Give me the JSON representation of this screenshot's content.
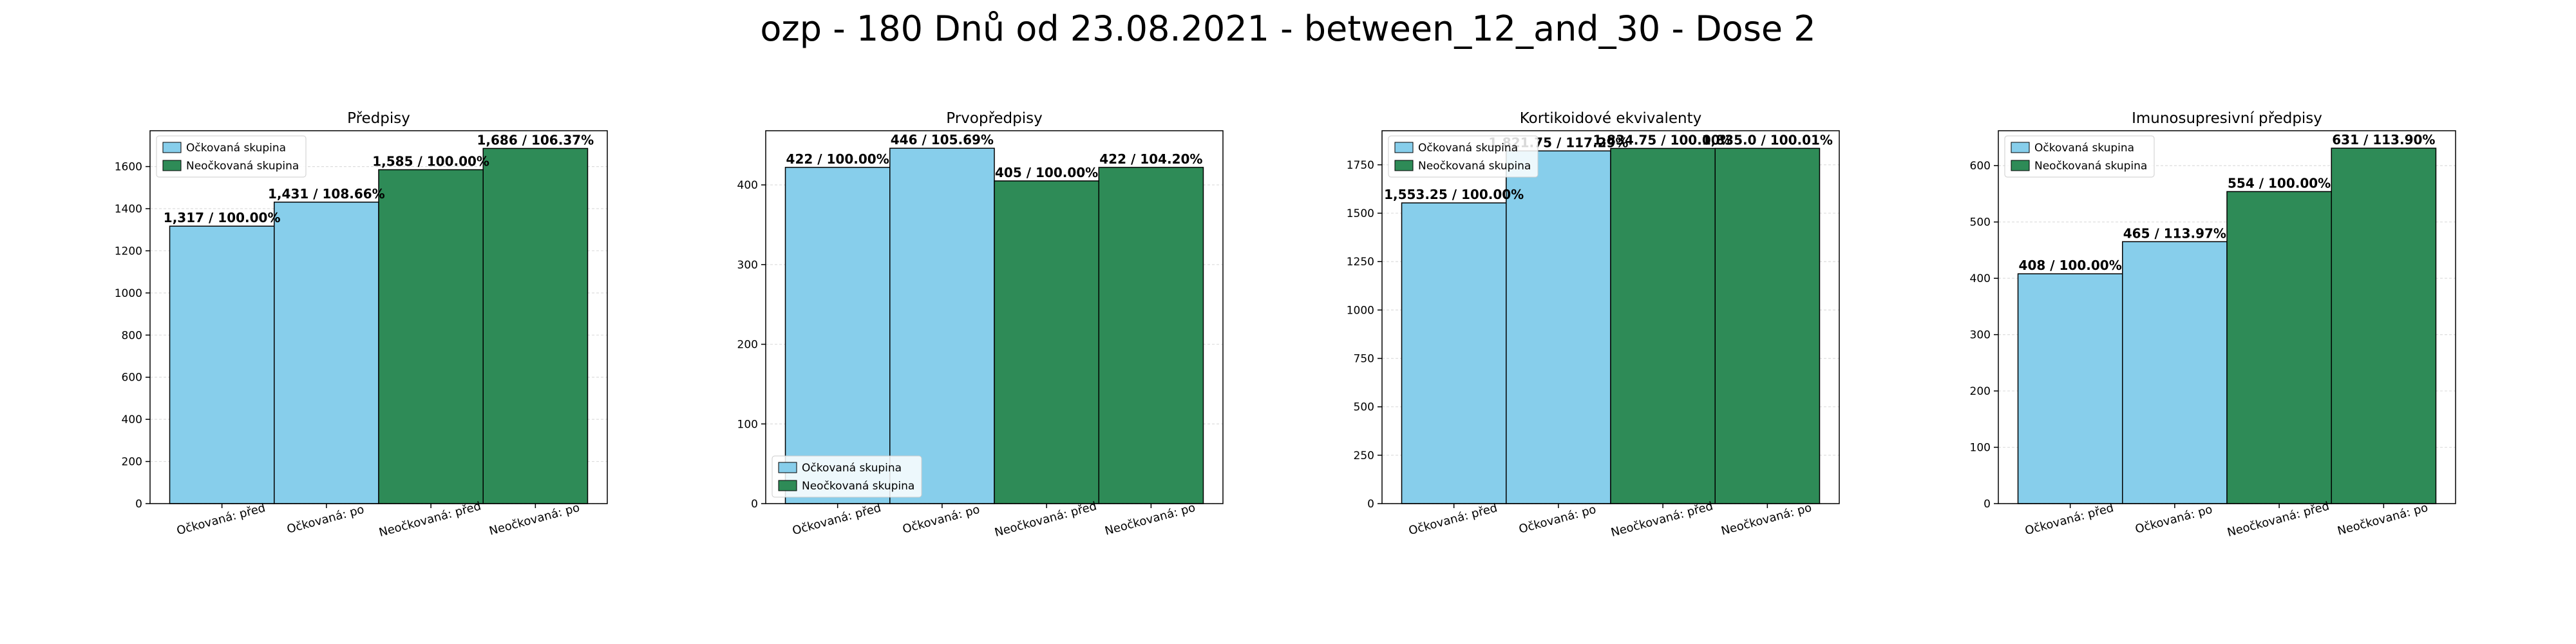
{
  "figure": {
    "suptitle": "ozp - 180 Dnů od 23.08.2021 - between_12_and_30 - Dose 2",
    "colors": {
      "vaccinated": "#87CEEB",
      "unvaccinated": "#2E8B57",
      "edge": "#000000",
      "grid": "#dddddd"
    }
  },
  "chart_data": [
    {
      "type": "bar",
      "title": "Předpisy",
      "categories": [
        "Očkovaná: před",
        "Očkovaná: po",
        "Neočkovaná: před",
        "Neočkovaná: po"
      ],
      "values": [
        1317,
        1431,
        1585,
        1686
      ],
      "bar_colors": [
        "vaccinated",
        "vaccinated",
        "unvaccinated",
        "unvaccinated"
      ],
      "bar_labels": [
        "1,317 / 100.00%",
        "1,431 / 108.66%",
        "1,585 / 100.00%",
        "1,686 / 106.37%"
      ],
      "ylim": [
        0,
        1770
      ],
      "yticks": [
        0,
        200,
        400,
        600,
        800,
        1000,
        1200,
        1400,
        1600
      ],
      "ytick_labels": [
        "0",
        "200",
        "400",
        "600",
        "800",
        "1000",
        "1200",
        "1400",
        "1600"
      ],
      "legend": {
        "position": "upper left",
        "entries": [
          "Očkovaná skupina",
          "Neočkovaná skupina"
        ]
      },
      "grid": true
    },
    {
      "type": "bar",
      "title": "Prvopředpisy",
      "categories": [
        "Očkovaná: před",
        "Očkovaná: po",
        "Neočkovaná: před",
        "Neočkovaná: po"
      ],
      "values": [
        422,
        446,
        405,
        422
      ],
      "bar_colors": [
        "vaccinated",
        "vaccinated",
        "unvaccinated",
        "unvaccinated"
      ],
      "bar_labels": [
        "422 / 100.00%",
        "446 / 105.69%",
        "405 / 100.00%",
        "422 / 104.20%"
      ],
      "ylim": [
        0,
        468
      ],
      "yticks": [
        0,
        100,
        200,
        300,
        400
      ],
      "ytick_labels": [
        "0",
        "100",
        "200",
        "300",
        "400"
      ],
      "legend": {
        "position": "lower left",
        "entries": [
          "Očkovaná skupina",
          "Neočkovaná skupina"
        ]
      },
      "grid": true
    },
    {
      "type": "bar",
      "title": "Kortikoidové ekvivalenty",
      "categories": [
        "Očkovaná: před",
        "Očkovaná: po",
        "Neočkovaná: před",
        "Neočkovaná: po"
      ],
      "values": [
        1553.25,
        1821.75,
        1834.75,
        1835.0
      ],
      "bar_colors": [
        "vaccinated",
        "vaccinated",
        "unvaccinated",
        "unvaccinated"
      ],
      "bar_labels": [
        "1,553.25 / 100.00%",
        "1,821.75 / 117.29%",
        "1,834.75 / 100.00%",
        "1,835.0 / 100.01%"
      ],
      "ylim": [
        0,
        1926
      ],
      "yticks": [
        0,
        250,
        500,
        750,
        1000,
        1250,
        1500,
        1750
      ],
      "ytick_labels": [
        "0",
        "250",
        "500",
        "750",
        "1000",
        "1250",
        "1500",
        "1750"
      ],
      "legend": {
        "position": "upper left",
        "entries": [
          "Očkovaná skupina",
          "Neočkovaná skupina"
        ]
      },
      "grid": true
    },
    {
      "type": "bar",
      "title": "Imunosupresivní předpisy",
      "categories": [
        "Očkovaná: před",
        "Očkovaná: po",
        "Neočkovaná: před",
        "Neočkovaná: po"
      ],
      "values": [
        408,
        465,
        554,
        631
      ],
      "bar_colors": [
        "vaccinated",
        "vaccinated",
        "unvaccinated",
        "unvaccinated"
      ],
      "bar_labels": [
        "408 / 100.00%",
        "465 / 113.97%",
        "554 / 100.00%",
        "631 / 113.90%"
      ],
      "ylim": [
        0,
        662
      ],
      "yticks": [
        0,
        100,
        200,
        300,
        400,
        500,
        600
      ],
      "ytick_labels": [
        "0",
        "100",
        "200",
        "300",
        "400",
        "500",
        "600"
      ],
      "legend": {
        "position": "upper left",
        "entries": [
          "Očkovaná skupina",
          "Neočkovaná skupina"
        ]
      },
      "grid": true
    }
  ]
}
